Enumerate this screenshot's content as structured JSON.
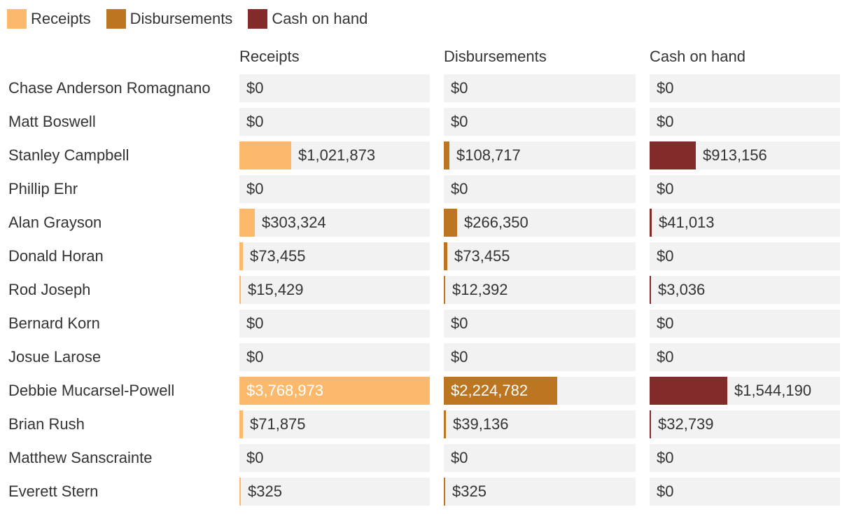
{
  "chart_data": {
    "type": "bar",
    "orientation": "horizontal",
    "legend": {
      "position": "top-left",
      "entries": [
        {
          "name": "Receipts",
          "color": "#fdb96b"
        },
        {
          "name": "Disbursements",
          "color": "#bc7520"
        },
        {
          "name": "Cash on hand",
          "color": "#832a2a"
        }
      ]
    },
    "categories": [
      "Chase Anderson Romagnano",
      "Matt Boswell",
      "Stanley Campbell",
      "Phillip Ehr",
      "Alan Grayson",
      "Donald Horan",
      "Rod Joseph",
      "Bernard Korn",
      "Josue Larose",
      "Debbie Mucarsel-Powell",
      "Brian Rush",
      "Matthew Sanscrainte",
      "Everett Stern"
    ],
    "series": [
      {
        "name": "Receipts",
        "color": "#fdb96b",
        "values": [
          0,
          0,
          1021873,
          0,
          303324,
          73455,
          15429,
          0,
          0,
          3768973,
          71875,
          0,
          325
        ],
        "labels": [
          "$0",
          "$0",
          "$1,021,873",
          "$0",
          "$303,324",
          "$73,455",
          "$15,429",
          "$0",
          "$0",
          "$3,768,973",
          "$71,875",
          "$0",
          "$325"
        ]
      },
      {
        "name": "Disbursements",
        "color": "#bc7520",
        "values": [
          0,
          0,
          108717,
          0,
          266350,
          73455,
          12392,
          0,
          0,
          2224782,
          39136,
          0,
          325
        ],
        "labels": [
          "$0",
          "$0",
          "$108,717",
          "$0",
          "$266,350",
          "$73,455",
          "$12,392",
          "$0",
          "$0",
          "$2,224,782",
          "$39,136",
          "$0",
          "$325"
        ]
      },
      {
        "name": "Cash on hand",
        "color": "#832a2a",
        "values": [
          0,
          0,
          913156,
          0,
          41013,
          0,
          3036,
          0,
          0,
          1544190,
          32739,
          0,
          0
        ],
        "labels": [
          "$0",
          "$0",
          "$913,156",
          "$0",
          "$41,013",
          "$0",
          "$3,036",
          "$0",
          "$0",
          "$1,544,190",
          "$32,739",
          "$0",
          "$0"
        ]
      }
    ],
    "xlim": [
      0,
      3768973
    ]
  }
}
